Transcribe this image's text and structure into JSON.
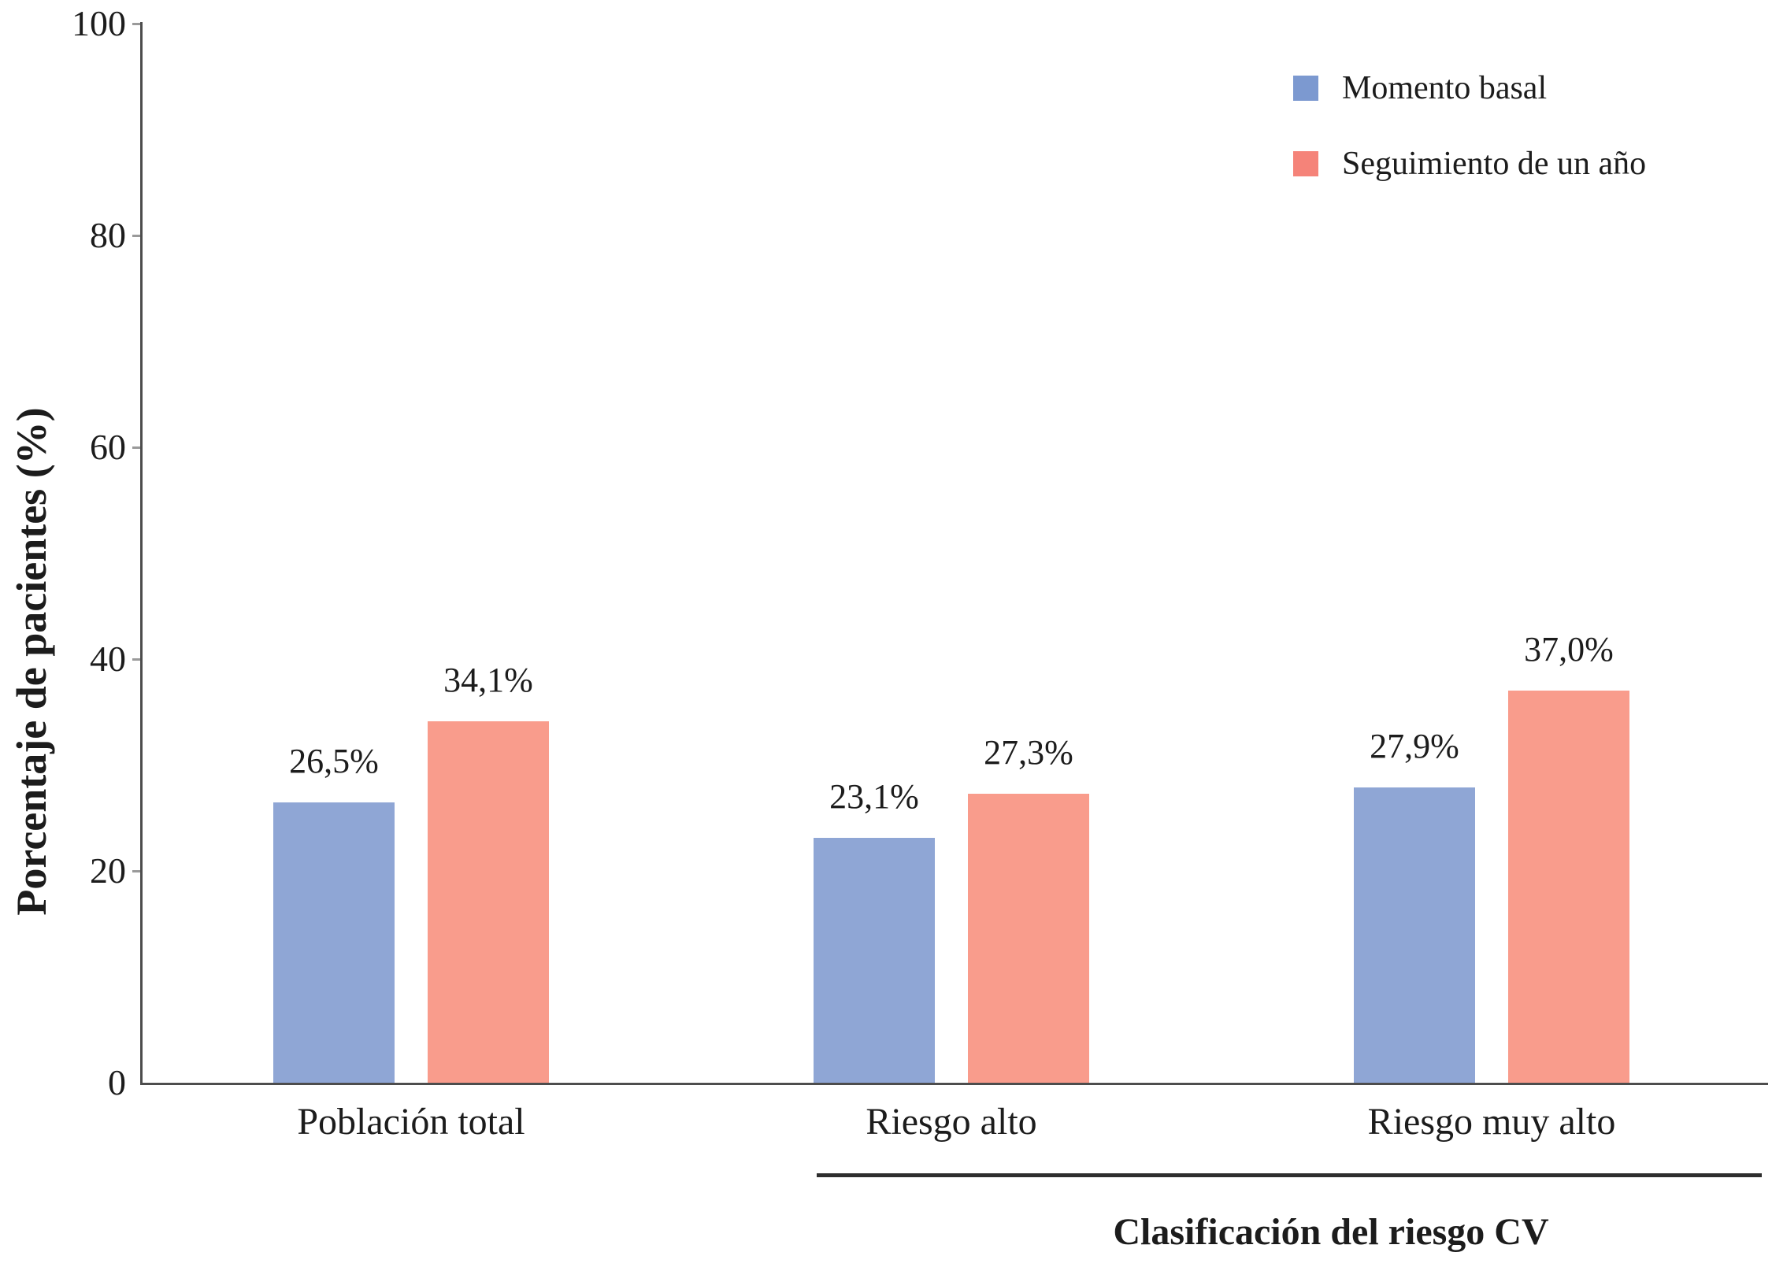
{
  "chart_data": {
    "type": "bar",
    "title": "",
    "ylabel": "Porcentaje de pacientes (%)",
    "xlabel_group": "Clasificación del riesgo CV",
    "categories": [
      "Población total",
      "Riesgo alto",
      "Riesgo muy alto"
    ],
    "grouped_categories_under_xlabel": [
      "Riesgo alto",
      "Riesgo muy alto"
    ],
    "series": [
      {
        "name": "Momento basal",
        "color": "#8FA6D5",
        "legend_color": "#7C99D0",
        "values": [
          26.5,
          23.1,
          27.9
        ],
        "labels": [
          "26,5%",
          "23,1%",
          "27,9%"
        ]
      },
      {
        "name": "Seguimiento de un año",
        "color": "#F99C8C",
        "legend_color": "#F58379",
        "values": [
          34.1,
          27.3,
          37.0
        ],
        "labels": [
          "34,1%",
          "27,3%",
          "37,0%"
        ]
      }
    ],
    "yticks": [
      0,
      20,
      40,
      60,
      80,
      100
    ],
    "ylim": [
      0,
      100
    ],
    "grid": false,
    "legend_position": "top-right",
    "value_decimal_separator": ","
  }
}
